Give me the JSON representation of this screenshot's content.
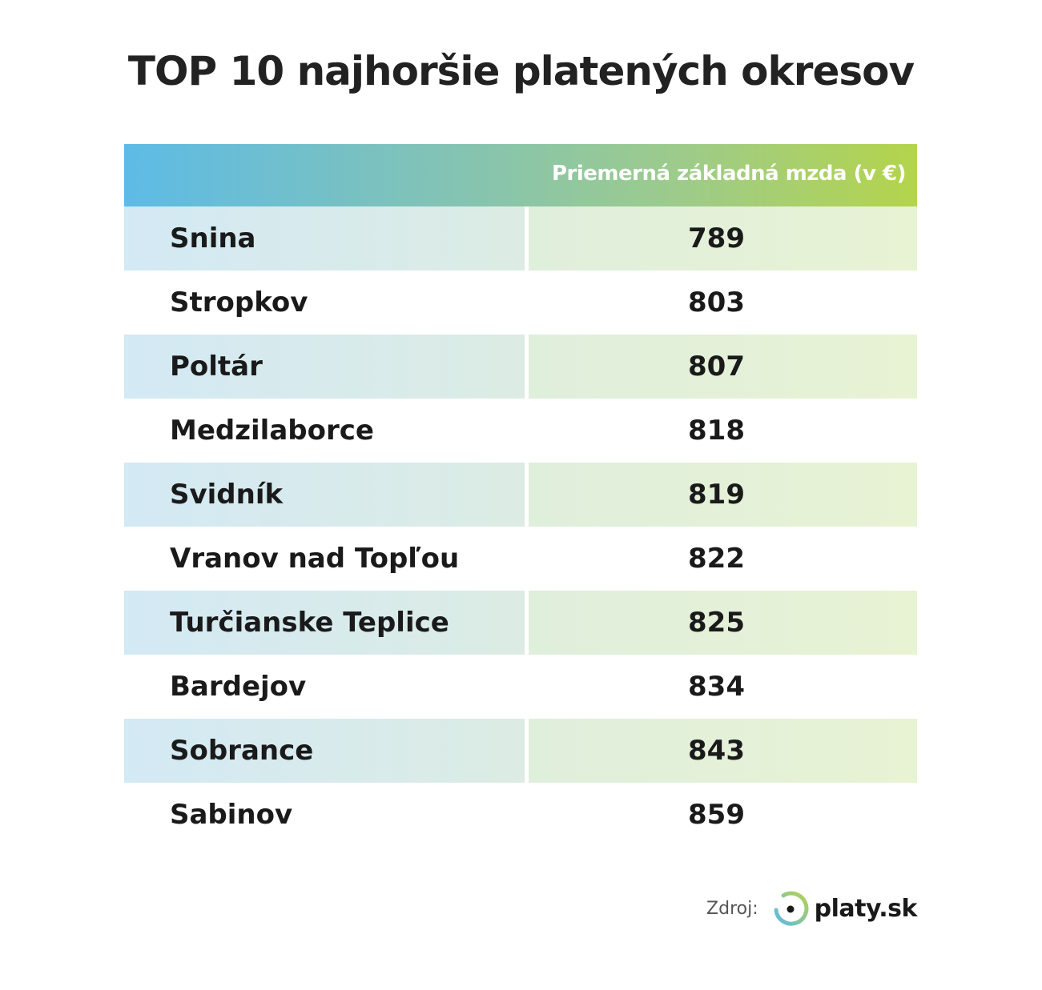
{
  "title": "TOP 10 najhoršie platených okresov",
  "chart_data": {
    "type": "table",
    "title": "TOP 10 najhoršie platených okresov",
    "columns": [
      "",
      "Priemerná základná mzda (v €)"
    ],
    "rows": [
      {
        "district": "Snina",
        "value": 789
      },
      {
        "district": "Stropkov",
        "value": 803
      },
      {
        "district": "Poltár",
        "value": 807
      },
      {
        "district": "Medzilaborce",
        "value": 818
      },
      {
        "district": "Svidník",
        "value": 819
      },
      {
        "district": "Vranov nad Topľou",
        "value": 822
      },
      {
        "district": "Turčianske Teplice",
        "value": 825
      },
      {
        "district": "Bardejov",
        "value": 834
      },
      {
        "district": "Sobrance",
        "value": 843
      },
      {
        "district": "Sabinov",
        "value": 859
      }
    ]
  },
  "source": {
    "label": "Zdroj:",
    "logo_text": "platy.sk"
  },
  "colors": {
    "gradient_start": "#5dbbe6",
    "gradient_end": "#b4d44b"
  }
}
